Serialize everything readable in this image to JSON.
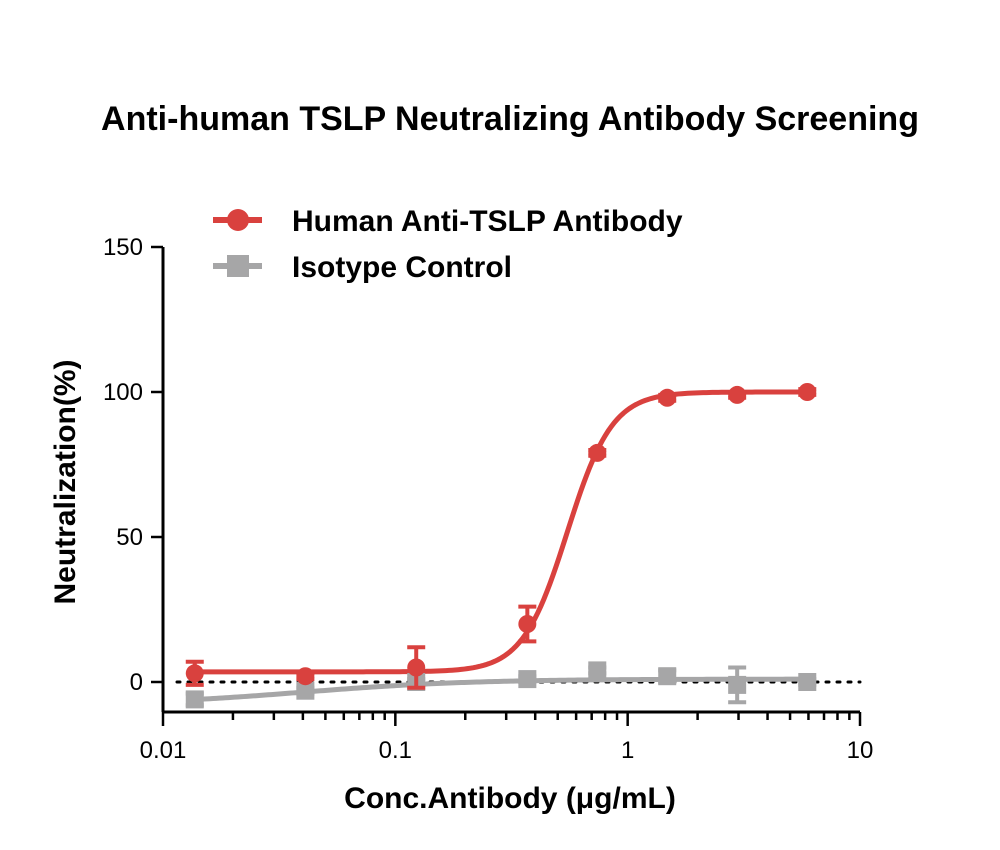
{
  "chart_data": {
    "type": "scatter",
    "title": "Anti-human TSLP Neutralizing Antibody Screening",
    "xlabel": "Conc.Antibody (μg/mL)",
    "ylabel": "Neutralization(%)",
    "x_scale": "log",
    "xlim": [
      0.01,
      10
    ],
    "ylim": [
      -10,
      150
    ],
    "x_ticks": [
      0.01,
      0.1,
      1,
      10
    ],
    "x_tick_labels": [
      "0.01",
      "0.1",
      "1",
      "10"
    ],
    "y_ticks": [
      0,
      50,
      100,
      150
    ],
    "y_tick_labels": [
      "0",
      "50",
      "100",
      "150"
    ],
    "grid": false,
    "legend_position": "top-left",
    "reference_line": {
      "y": 0,
      "style": "dotted"
    },
    "series": [
      {
        "name": "Human Anti-TSLP Antibody",
        "color": "#d9413e",
        "marker": "circle",
        "x": [
          0.0137,
          0.041,
          0.123,
          0.37,
          0.74,
          1.48,
          2.96,
          5.93
        ],
        "y": [
          3,
          2,
          5,
          20,
          79,
          98,
          99,
          100
        ],
        "error": [
          4,
          1,
          7,
          6,
          1,
          1,
          1,
          1
        ],
        "fit": {
          "model": "sigmoid",
          "bottom": 3.5,
          "top": 100,
          "ec50": 0.55,
          "hill": 4.5
        }
      },
      {
        "name": "Isotype Control",
        "color": "#a6a6a7",
        "marker": "square",
        "x": [
          0.0137,
          0.041,
          0.123,
          0.37,
          0.74,
          1.48,
          2.96,
          5.93
        ],
        "y": [
          -6,
          -3,
          0,
          1,
          4,
          2,
          -1,
          0
        ],
        "error": [
          2,
          1,
          1,
          1,
          1,
          2,
          6,
          1
        ],
        "fit": {
          "model": "sigmoid",
          "bottom": -8,
          "top": 1,
          "ec50": 0.04,
          "hill": 1.2
        }
      }
    ]
  }
}
